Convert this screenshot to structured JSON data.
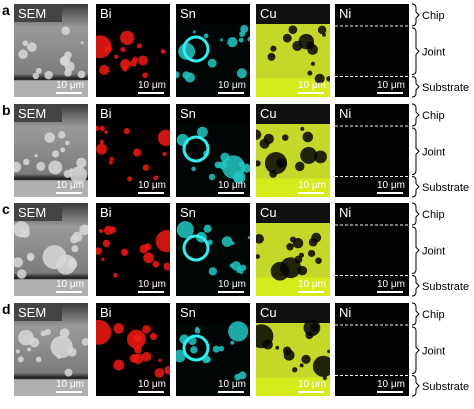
{
  "rows": [
    {
      "letter": "a",
      "panels": [
        {
          "label": "SEM",
          "scale_bar": "10 μm"
        },
        {
          "label": "Bi",
          "scale_bar": "10 μm"
        },
        {
          "label": "Sn",
          "scale_bar": "10 μm"
        },
        {
          "label": "Cu",
          "scale_bar": "10 μm"
        },
        {
          "label": "Ni",
          "scale_bar": "10 μm"
        }
      ],
      "regions": [
        "Chip",
        "Joint",
        "Substrate"
      ]
    },
    {
      "letter": "b",
      "panels": [
        {
          "label": "SEM",
          "scale_bar": "10 μm"
        },
        {
          "label": "Bi",
          "scale_bar": "10 μm"
        },
        {
          "label": "Sn",
          "scale_bar": "10 μm"
        },
        {
          "label": "Cu",
          "scale_bar": "10 μm"
        },
        {
          "label": "Ni",
          "scale_bar": "10 μm"
        }
      ],
      "regions": [
        "Chip",
        "Joint",
        "Substrate"
      ]
    },
    {
      "letter": "c",
      "panels": [
        {
          "label": "SEM",
          "scale_bar": "10 μm"
        },
        {
          "label": "Bi",
          "scale_bar": "10 μm"
        },
        {
          "label": "Sn",
          "scale_bar": "10 μm"
        },
        {
          "label": "Cu",
          "scale_bar": "10 μm"
        },
        {
          "label": "Ni",
          "scale_bar": "10 μm"
        }
      ],
      "regions": [
        "Chip",
        "Joint",
        "Substrate"
      ]
    },
    {
      "letter": "d",
      "panels": [
        {
          "label": "SEM",
          "scale_bar": "10 μm"
        },
        {
          "label": "Bi",
          "scale_bar": "10 μm"
        },
        {
          "label": "Sn",
          "scale_bar": "10 μm"
        },
        {
          "label": "Cu",
          "scale_bar": "10 μm"
        },
        {
          "label": "Ni",
          "scale_bar": "10 μm"
        }
      ],
      "regions": [
        "Chip",
        "Joint",
        "Substrate"
      ]
    }
  ]
}
